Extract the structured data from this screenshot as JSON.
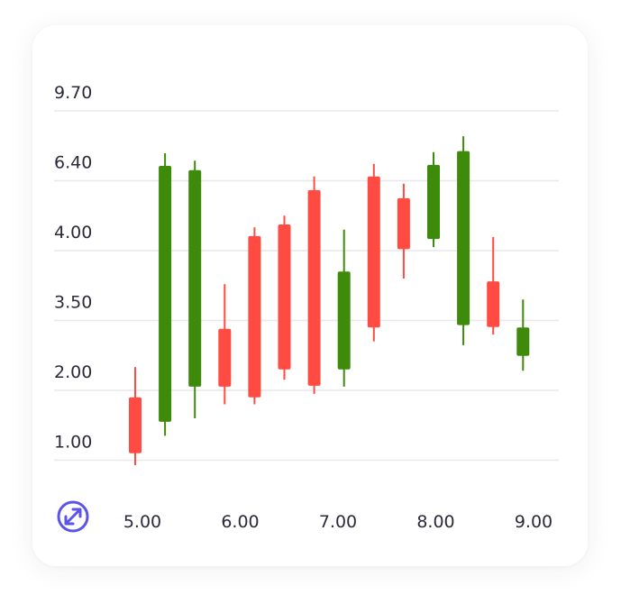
{
  "chart_data": {
    "type": "candlestick",
    "y_tick_labels": [
      "9.70",
      "6.40",
      "4.00",
      "3.50",
      "2.00",
      "1.00"
    ],
    "x_tick_labels": [
      "5.00",
      "6.00",
      "7.00",
      "8.00",
      "9.00"
    ],
    "colors": {
      "up": "#3e8a0a",
      "down": "#ff4b42",
      "grid": "#e8e8ee",
      "icon": "#5b54e6"
    },
    "candles": [
      {
        "direction": "down",
        "open": 1.9,
        "close": 1.1,
        "high": 2.5,
        "low": 0.93
      },
      {
        "direction": "up",
        "open": 1.55,
        "close": 7.1,
        "high": 7.7,
        "low": 1.35
      },
      {
        "direction": "up",
        "open": 2.08,
        "close": 6.9,
        "high": 7.35,
        "low": 1.6
      },
      {
        "direction": "down",
        "open": 3.32,
        "close": 2.08,
        "high": 3.76,
        "low": 1.8
      },
      {
        "direction": "down",
        "open": 4.5,
        "close": 1.9,
        "high": 4.8,
        "low": 1.8
      },
      {
        "direction": "down",
        "open": 4.9,
        "close": 2.45,
        "high": 5.2,
        "low": 2.23
      },
      {
        "direction": "down",
        "open": 6.08,
        "close": 2.1,
        "high": 6.6,
        "low": 1.95
      },
      {
        "direction": "up",
        "open": 2.45,
        "close": 3.85,
        "high": 4.72,
        "low": 2.08
      },
      {
        "direction": "down",
        "open": 6.6,
        "close": 3.35,
        "high": 7.2,
        "low": 3.05
      },
      {
        "direction": "down",
        "open": 5.8,
        "close": 4.05,
        "high": 6.3,
        "low": 3.8
      },
      {
        "direction": "up",
        "open": 4.4,
        "close": 7.15,
        "high": 7.75,
        "low": 4.12
      },
      {
        "direction": "up",
        "open": 3.4,
        "close": 7.8,
        "high": 8.5,
        "low": 2.97
      },
      {
        "direction": "down",
        "open": 3.78,
        "close": 3.36,
        "high": 4.47,
        "low": 3.2
      },
      {
        "direction": "up",
        "open": 2.74,
        "close": 3.35,
        "high": 3.65,
        "low": 2.42
      }
    ],
    "grid": true
  },
  "expand_icon": "expand-arrows-icon"
}
